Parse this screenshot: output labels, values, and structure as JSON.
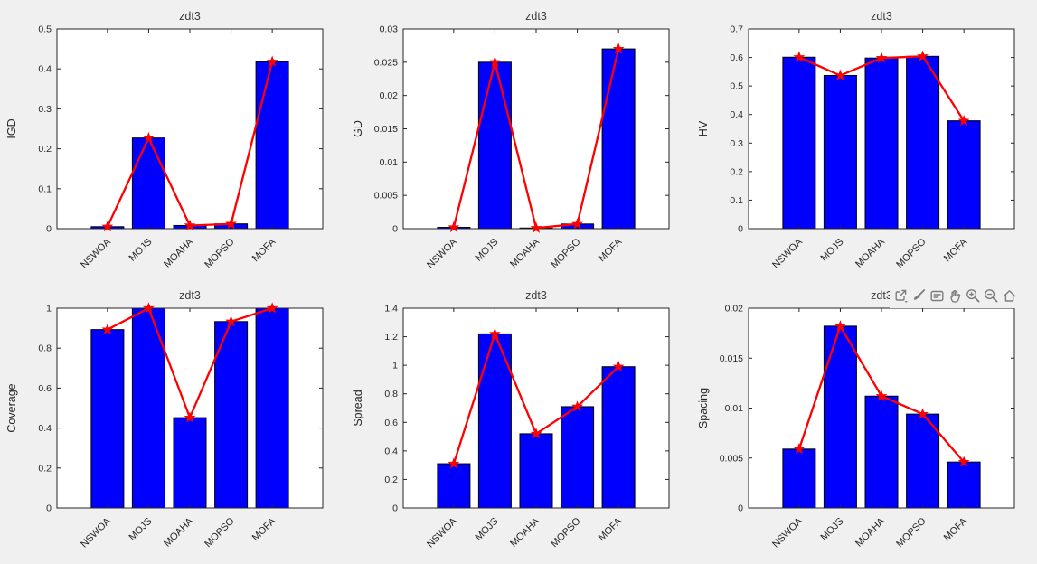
{
  "figure": {
    "background": "#f0f0f0",
    "plot_background": "#ffffff",
    "bar_color": "#0000ff",
    "bar_edge_color": "#000000",
    "line_color": "#ff0000",
    "marker": "pentagram",
    "axis_color": "#262626"
  },
  "toolbar": {
    "icons": [
      {
        "name": "export-icon"
      },
      {
        "name": "brush-icon"
      },
      {
        "name": "datatips-icon"
      },
      {
        "name": "pan-icon"
      },
      {
        "name": "zoom-in-icon"
      },
      {
        "name": "zoom-out-icon"
      },
      {
        "name": "home-icon"
      }
    ]
  },
  "chart_data": [
    {
      "type": "bar",
      "title": "zdt3",
      "ylabel": "IGD",
      "xlabel": "",
      "categories": [
        "NSWOA",
        "MOJS",
        "MOAHA",
        "MOPSO",
        "MOFA"
      ],
      "values": [
        0.005,
        0.227,
        0.008,
        0.012,
        0.418
      ],
      "ylim": [
        0,
        0.5
      ],
      "yticks": [
        "0",
        "0.1",
        "0.2",
        "0.3",
        "0.4",
        "0.5"
      ],
      "overlay_line": true
    },
    {
      "type": "bar",
      "title": "zdt3",
      "ylabel": "GD",
      "xlabel": "",
      "categories": [
        "NSWOA",
        "MOJS",
        "MOAHA",
        "MOPSO",
        "MOFA"
      ],
      "values": [
        0.0002,
        0.025,
        0.0001,
        0.0007,
        0.027
      ],
      "ylim": [
        0,
        0.03
      ],
      "yticks": [
        "0",
        "0.005",
        "0.01",
        "0.015",
        "0.02",
        "0.025",
        "0.03"
      ],
      "overlay_line": true
    },
    {
      "type": "bar",
      "title": "zdt3",
      "ylabel": "HV",
      "xlabel": "",
      "categories": [
        "NSWOA",
        "MOJS",
        "MOAHA",
        "MOPSO",
        "MOFA"
      ],
      "values": [
        0.601,
        0.537,
        0.598,
        0.604,
        0.378
      ],
      "ylim": [
        0,
        0.7
      ],
      "yticks": [
        "0",
        "0.1",
        "0.2",
        "0.3",
        "0.4",
        "0.5",
        "0.6",
        "0.7"
      ],
      "overlay_line": true
    },
    {
      "type": "bar",
      "title": "zdt3",
      "ylabel": "Coverage",
      "xlabel": "",
      "categories": [
        "NSWOA",
        "MOJS",
        "MOAHA",
        "MOPSO",
        "MOFA"
      ],
      "values": [
        0.893,
        1.0,
        0.452,
        0.933,
        1.0
      ],
      "ylim": [
        0,
        1
      ],
      "yticks": [
        "0",
        "0.2",
        "0.4",
        "0.6",
        "0.8",
        "1"
      ],
      "overlay_line": true
    },
    {
      "type": "bar",
      "title": "zdt3",
      "ylabel": "Spread",
      "xlabel": "",
      "categories": [
        "NSWOA",
        "MOJS",
        "MOAHA",
        "MOPSO",
        "MOFA"
      ],
      "values": [
        0.31,
        1.22,
        0.52,
        0.71,
        0.99
      ],
      "ylim": [
        0,
        1.4
      ],
      "yticks": [
        "0",
        "0.2",
        "0.4",
        "0.6",
        "0.8",
        "1",
        "1.2",
        "1.4"
      ],
      "overlay_line": true
    },
    {
      "type": "bar",
      "title": "zdt3",
      "ylabel": "Spacing",
      "xlabel": "",
      "categories": [
        "NSWOA",
        "MOJS",
        "MOAHA",
        "MOPSO",
        "MOFA"
      ],
      "values": [
        0.0059,
        0.0182,
        0.0112,
        0.0094,
        0.0046
      ],
      "ylim": [
        0,
        0.02
      ],
      "yticks": [
        "0",
        "0.005",
        "0.01",
        "0.015",
        "0.02"
      ],
      "overlay_line": true
    }
  ]
}
